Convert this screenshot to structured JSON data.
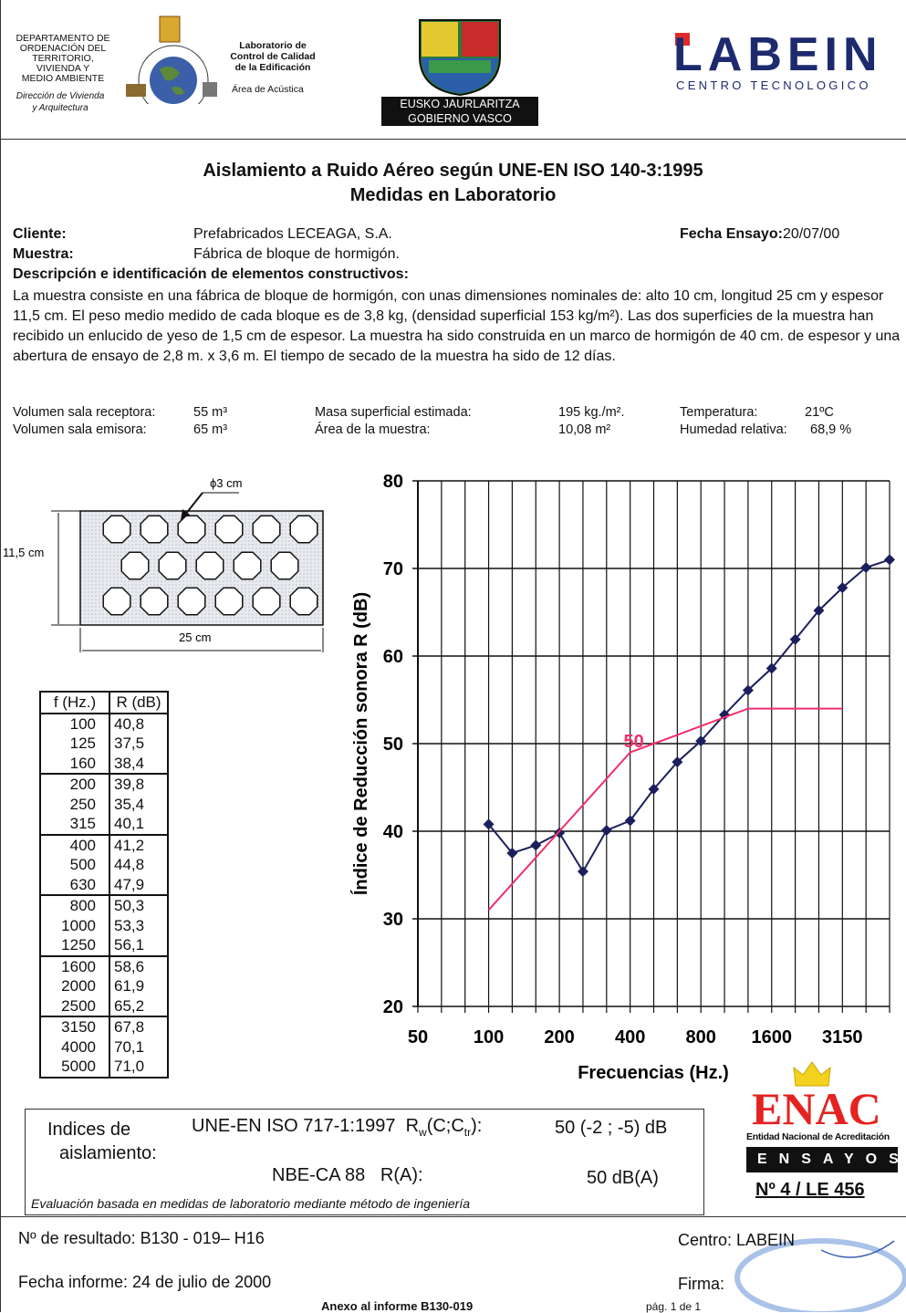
{
  "header": {
    "department": [
      "DEPARTAMENTO DE",
      "ORDENACIÓN DEL",
      "TERRITORIO,",
      "VIVIENDA Y",
      "MEDIO AMBIENTE"
    ],
    "directorate": [
      "Dirección de Vivienda",
      "y Arquitectura"
    ],
    "laboratory": [
      "Laboratorio de",
      "Control de Calidad",
      "de la Edificación"
    ],
    "area": "Área de Acústica",
    "government": [
      "EUSKO JAURLARITZA",
      "GOBIERNO VASCO"
    ],
    "company": "LABEIN",
    "company_tagline": "CENTRO TECNOLOGICO"
  },
  "title": "Aislamiento a Ruido Aéreo según UNE-EN ISO 140-3:1995",
  "subtitle": "Medidas en Laboratorio",
  "test": {
    "client_label": "Cliente:",
    "client": "Prefabricados LECEAGA, S.A.",
    "date_label": "Fecha Ensayo:",
    "date": "20/07/00",
    "sample_label": "Muestra:",
    "sample": "Fábrica de bloque de hormigón.",
    "description_label": "Descripción e identificación de elementos constructivos:",
    "description": "La muestra consiste en una fábrica de bloque de hormigón, con unas dimensiones nominales de: alto 10 cm, longitud 25 cm y espesor 11,5 cm. El peso medio medido de cada bloque es de 3,8 kg, (densidad superficial 153 kg/m²). Las dos superficies de la muestra han recibido un enlucido de yeso de 1,5 cm de espesor. La muestra ha sido construida en un marco de hormigón de 40 cm. de espesor y una abertura de ensayo de 2,8 m. x 3,6 m. El tiempo de secado de la muestra ha sido de 12 días."
  },
  "conditions": [
    {
      "label": "Volumen sala receptora:",
      "value": "55 m³"
    },
    {
      "label": "Volumen sala emisora:",
      "value": "65 m³"
    },
    {
      "label": "Masa superficial estimada:",
      "value": "195 kg./m²."
    },
    {
      "label": "Área de la muestra:",
      "value": "10,08 m²"
    },
    {
      "label": "Temperatura:",
      "value": "21ºC"
    },
    {
      "label": "Humedad relativa:",
      "value": "68,9 %"
    }
  ],
  "drawing": {
    "hole": "ϕ3 cm",
    "thickness": "11,5 cm",
    "length": "25 cm"
  },
  "table": {
    "header": [
      "f (Hz.)",
      "R (dB)"
    ],
    "rows": [
      [
        "100",
        "40,8"
      ],
      [
        "125",
        "37,5"
      ],
      [
        "160",
        "38,4"
      ],
      [
        "200",
        "39,8"
      ],
      [
        "250",
        "35,4"
      ],
      [
        "315",
        "40,1"
      ],
      [
        "400",
        "41,2"
      ],
      [
        "500",
        "44,8"
      ],
      [
        "630",
        "47,9"
      ],
      [
        "800",
        "50,3"
      ],
      [
        "1000",
        "53,3"
      ],
      [
        "1250",
        "56,1"
      ],
      [
        "1600",
        "58,6"
      ],
      [
        "2000",
        "61,9"
      ],
      [
        "2500",
        "65,2"
      ],
      [
        "3150",
        "67,8"
      ],
      [
        "4000",
        "70,1"
      ],
      [
        "5000",
        "71,0"
      ]
    ]
  },
  "chart_data": {
    "type": "line",
    "x_label": "Frecuencias (Hz.)",
    "y_label": "Índice de Reducción sonora R (dB)",
    "categories": [
      50,
      null,
      null,
      100,
      null,
      null,
      200,
      null,
      null,
      400,
      null,
      null,
      800,
      null,
      null,
      1600,
      null,
      null,
      3150,
      null,
      null
    ],
    "ylim": [
      20,
      80
    ],
    "yticks": [
      20,
      30,
      40,
      50,
      60,
      70,
      80
    ],
    "grid": true,
    "series": [
      {
        "color": "#1b1f5c",
        "marker": "diamond",
        "values": [
          null,
          null,
          null,
          40.8,
          37.5,
          38.4,
          39.8,
          35.4,
          40.1,
          41.2,
          44.8,
          47.9,
          50.3,
          53.3,
          56.1,
          58.6,
          61.9,
          65.2,
          67.8,
          70.1,
          71.0
        ]
      },
      {
        "color": "#f0306a",
        "values": [
          null,
          null,
          null,
          31,
          34,
          37,
          40,
          43,
          46,
          49,
          50,
          51,
          52,
          53,
          54,
          54,
          54,
          54,
          54,
          null,
          null
        ]
      }
    ],
    "annotation": "50"
  },
  "indices": {
    "label": [
      "Indices de",
      "aislamiento:"
    ],
    "standard": "UNE-EN ISO 717-1:1997",
    "symbol": "R",
    "symbol_sub": "w",
    "params": "(C;C",
    "params_sub": "tr",
    "params_end": "):",
    "result": "50 (-2 ; -5) dB",
    "standard2": "NBE-CA 88   R(A):",
    "result2": "50 dB(A)",
    "note": "Evaluación basada en medidas de laboratorio mediante método de ingeniería"
  },
  "accreditation": {
    "logo": "ENAC",
    "entity": "Entidad Nacional de Acreditación",
    "scope": "ENSAYOS",
    "number": "Nº 4 / LE 456"
  },
  "footer": {
    "result_number": "Nº de resultado: B130 - 019– H16",
    "center": "Centro: LABEIN",
    "report_date": "Fecha informe: 24 de julio de 2000",
    "signature": "Firma:",
    "annex": "Anexo al informe B130-019",
    "page": "pág. 1 de 1"
  }
}
